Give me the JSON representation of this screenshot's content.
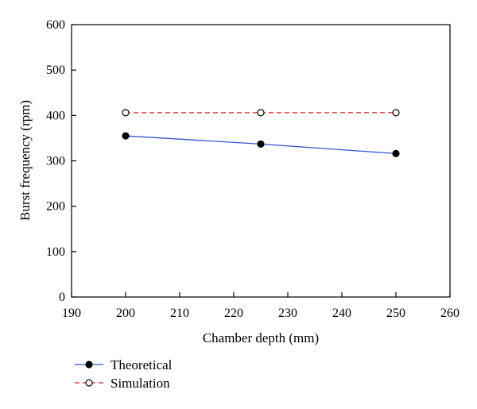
{
  "chart_data": {
    "type": "line",
    "xlabel": "Chamber depth (mm)",
    "ylabel": "Burst frequency (rpm)",
    "xlim": [
      190,
      260
    ],
    "ylim": [
      0,
      600
    ],
    "xticks": [
      190,
      200,
      210,
      220,
      230,
      240,
      250,
      260
    ],
    "yticks": [
      0,
      100,
      200,
      300,
      400,
      500,
      600
    ],
    "grid": false,
    "legend_position": "bottom-left",
    "series": [
      {
        "name": "Theoretical",
        "x": [
          200,
          225,
          250
        ],
        "y": [
          355,
          337,
          316
        ],
        "color": "#3355cc",
        "line_style": "solid",
        "marker": "filled-circle"
      },
      {
        "name": "Simulation",
        "x": [
          200,
          225,
          250
        ],
        "y": [
          406,
          406,
          406
        ],
        "color": "#dd2222",
        "line_style": "dashed",
        "marker": "open-circle"
      }
    ]
  }
}
